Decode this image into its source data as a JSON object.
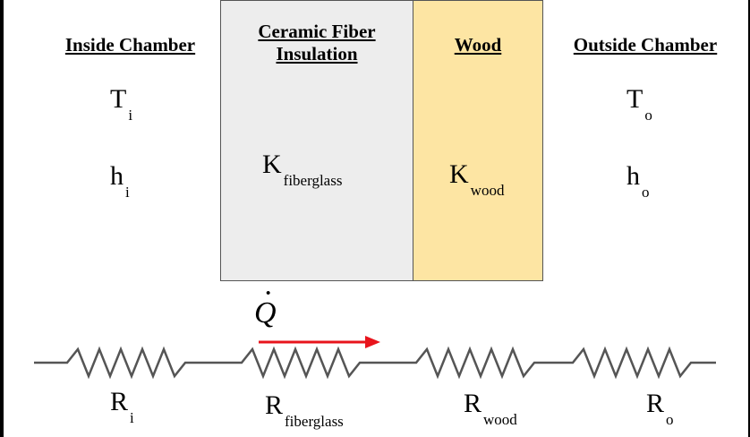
{
  "regions": {
    "inside": {
      "heading": "Inside Chamber",
      "temp": "T",
      "temp_sub": "i",
      "coef": "h",
      "coef_sub": "i"
    },
    "ceramic": {
      "heading_line1": "Ceramic Fiber",
      "heading_line2": "Insulation",
      "k": "K",
      "k_sub": "fiberglass",
      "fill": "#ededed"
    },
    "wood": {
      "heading": "Wood",
      "k": "K",
      "k_sub": "wood",
      "fill": "#fde5a3"
    },
    "outside": {
      "heading": "Outside Chamber",
      "temp": "T",
      "temp_sub": "o",
      "coef": "h",
      "coef_sub": "o"
    }
  },
  "heat_flow": {
    "symbol": "Q",
    "arrow_color": "#e8141c"
  },
  "resistors": [
    {
      "label": "R",
      "sub": "i"
    },
    {
      "label": "R",
      "sub": "fiberglass"
    },
    {
      "label": "R",
      "sub": "wood"
    },
    {
      "label": "R",
      "sub": "o"
    }
  ]
}
